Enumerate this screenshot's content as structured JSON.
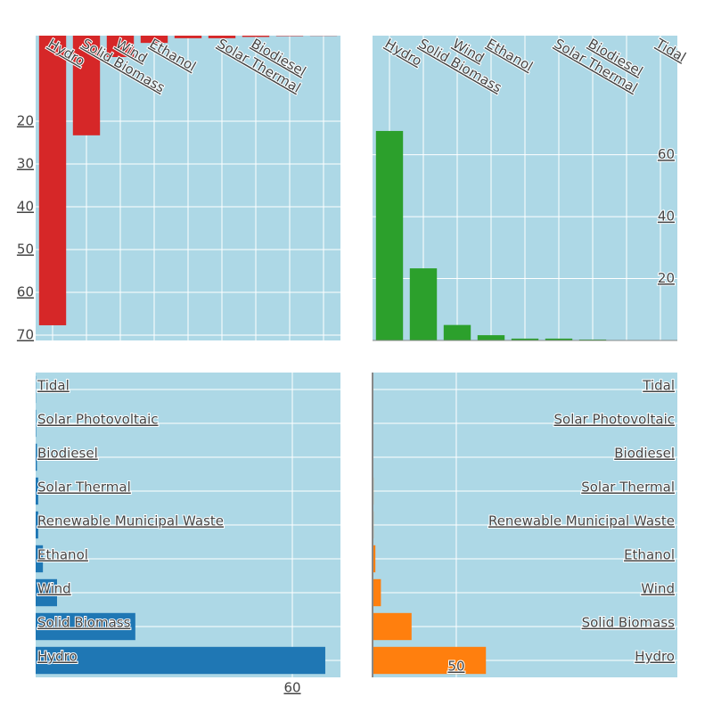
{
  "chart_data": [
    {
      "type": "bar",
      "orientation": "v",
      "color": "#d62728",
      "categories": [
        "Hydro",
        "Solid Biomass",
        "Wind",
        "Ethanol",
        null,
        "Solar Thermal",
        "Biodiesel",
        null,
        null
      ],
      "values": [
        67.7,
        23.3,
        5.0,
        1.7,
        0.6,
        0.6,
        0.3,
        0.1,
        0.05
      ],
      "ylim": [
        71.25,
        0
      ],
      "yticks": [
        20,
        30,
        40,
        50,
        60,
        70
      ]
    },
    {
      "type": "bar",
      "orientation": "v",
      "color": "#2ca02c",
      "categories": [
        "Hydro",
        "Solid Biomass",
        "Wind",
        "Ethanol",
        null,
        "Solar Thermal",
        "Biodiesel",
        null,
        "Tidal"
      ],
      "values": [
        67.7,
        23.3,
        5.0,
        1.7,
        0.6,
        0.6,
        0.3,
        0.1,
        0.05
      ],
      "ylim": [
        0,
        98.5
      ],
      "yticks": [
        20,
        40,
        60
      ]
    },
    {
      "type": "bar",
      "orientation": "h",
      "color": "#1f77b4",
      "categories": [
        "Hydro",
        "Solid Biomass",
        "Wind",
        "Ethanol",
        "Renewable Municipal Waste",
        "Solar Thermal",
        "Biodiesel",
        "Solar Photovoltaic",
        "Tidal"
      ],
      "values": [
        67.7,
        23.3,
        5.0,
        1.7,
        0.6,
        0.6,
        0.3,
        0.1,
        0.05
      ],
      "xlim": [
        0,
        71.25
      ],
      "xticks": [
        60
      ]
    },
    {
      "type": "bar",
      "orientation": "h",
      "color": "#ff7f0e",
      "categories": [
        "Hydro",
        "Solid Biomass",
        "Wind",
        "Ethanol",
        "Renewable Municipal Waste",
        "Solar Thermal",
        "Biodiesel",
        "Solar Photovoltaic",
        "Tidal"
      ],
      "values": [
        67.7,
        23.3,
        5.0,
        1.7,
        0.6,
        0.6,
        0.3,
        0.1,
        0.05
      ],
      "xlim": [
        0,
        182
      ],
      "xticks": [
        50
      ]
    }
  ]
}
